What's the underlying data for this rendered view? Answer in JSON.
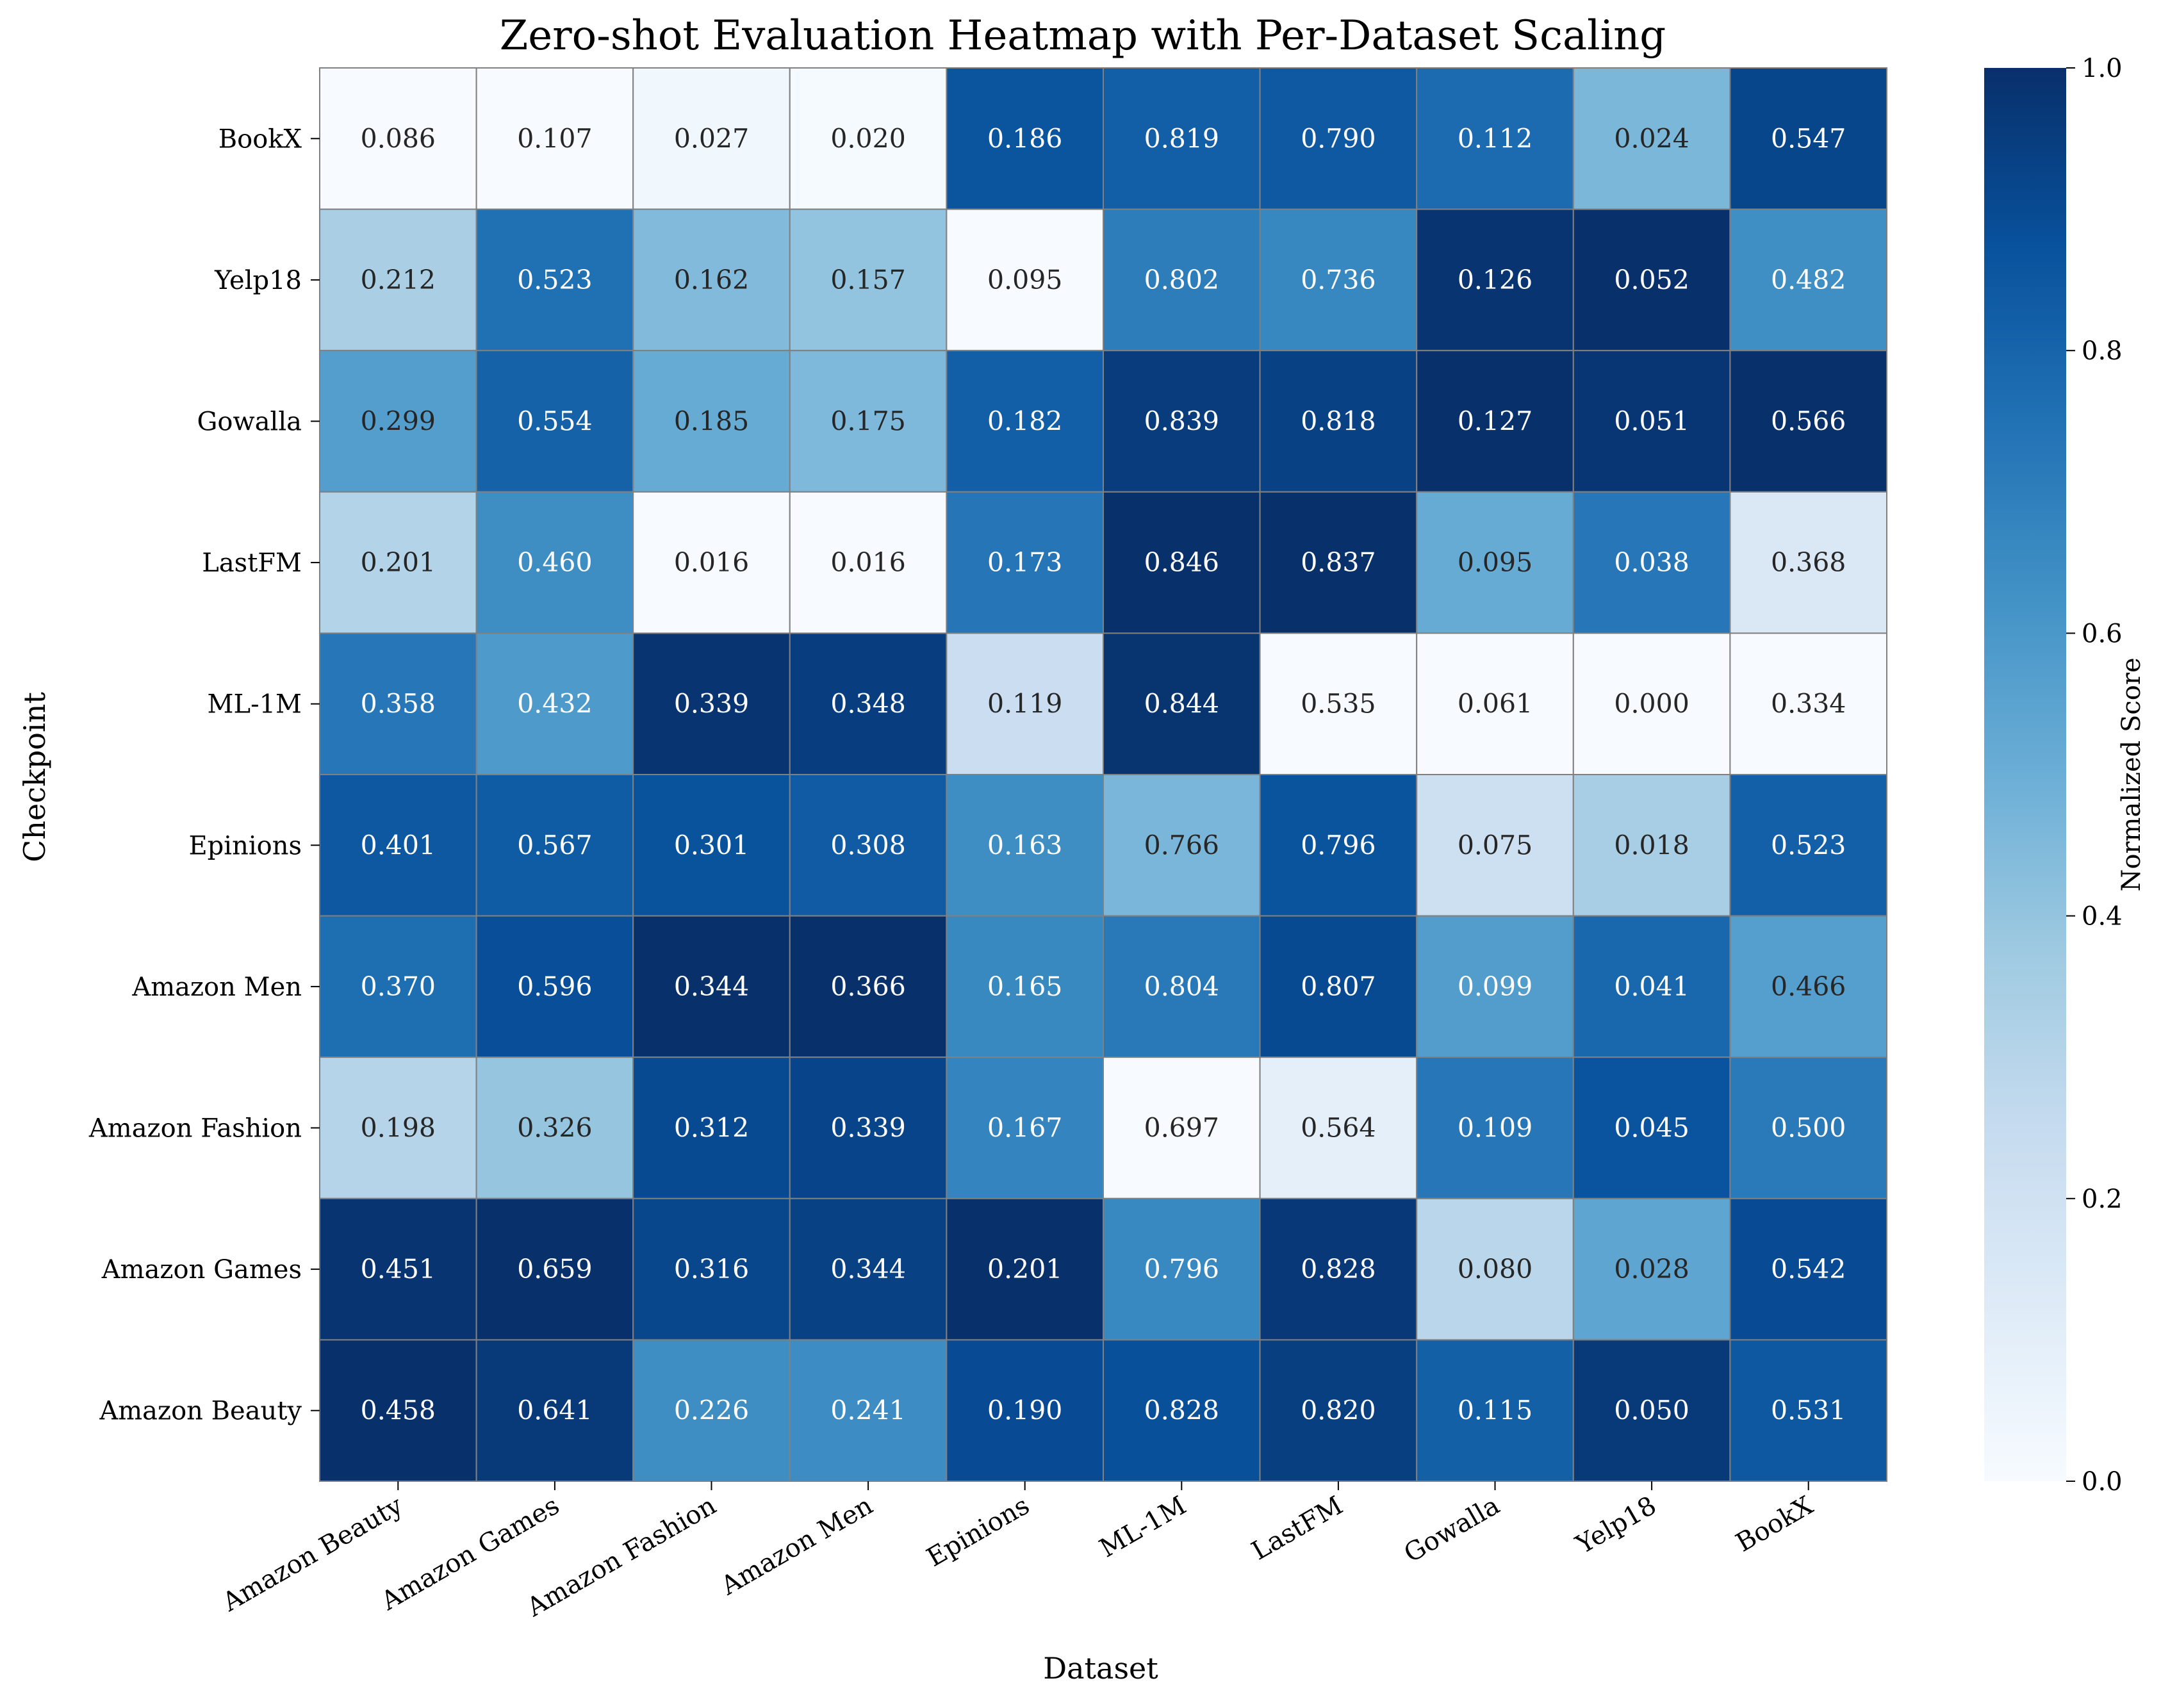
{
  "chart_data": {
    "type": "heatmap",
    "title": "Zero-shot Evaluation Heatmap with Per-Dataset Scaling",
    "xlabel": "Dataset",
    "ylabel": "Checkpoint",
    "x_categories": [
      "Amazon Beauty",
      "Amazon Games",
      "Amazon Fashion",
      "Amazon Men",
      "Epinions",
      "ML-1M",
      "LastFM",
      "Gowalla",
      "Yelp18",
      "BookX"
    ],
    "y_categories": [
      "BookX",
      "Yelp18",
      "Gowalla",
      "LastFM",
      "ML-1M",
      "Epinions",
      "Amazon Men",
      "Amazon Fashion",
      "Amazon Games",
      "Amazon Beauty"
    ],
    "values": [
      [
        0.086,
        0.107,
        0.027,
        0.02,
        0.186,
        0.819,
        0.79,
        0.112,
        0.024,
        0.547
      ],
      [
        0.212,
        0.523,
        0.162,
        0.157,
        0.095,
        0.802,
        0.736,
        0.126,
        0.052,
        0.482
      ],
      [
        0.299,
        0.554,
        0.185,
        0.175,
        0.182,
        0.839,
        0.818,
        0.127,
        0.051,
        0.566
      ],
      [
        0.201,
        0.46,
        0.016,
        0.016,
        0.173,
        0.846,
        0.837,
        0.095,
        0.038,
        0.368
      ],
      [
        0.358,
        0.432,
        0.339,
        0.348,
        0.119,
        0.844,
        0.535,
        0.061,
        0.0,
        0.334
      ],
      [
        0.401,
        0.567,
        0.301,
        0.308,
        0.163,
        0.766,
        0.796,
        0.075,
        0.018,
        0.523
      ],
      [
        0.37,
        0.596,
        0.344,
        0.366,
        0.165,
        0.804,
        0.807,
        0.099,
        0.041,
        0.466
      ],
      [
        0.198,
        0.326,
        0.312,
        0.339,
        0.167,
        0.697,
        0.564,
        0.109,
        0.045,
        0.5
      ],
      [
        0.451,
        0.659,
        0.316,
        0.344,
        0.201,
        0.796,
        0.828,
        0.08,
        0.028,
        0.542
      ],
      [
        0.458,
        0.641,
        0.226,
        0.241,
        0.19,
        0.828,
        0.82,
        0.115,
        0.05,
        0.531
      ]
    ],
    "scaling": "per-dataset (per column)",
    "colormap": "Blues",
    "colorbar": {
      "label": "Normalized Score",
      "range": [
        0.0,
        1.0
      ],
      "ticks": [
        "0.0",
        "0.2",
        "0.4",
        "0.6",
        "0.8",
        "1.0"
      ]
    },
    "grid": false
  }
}
